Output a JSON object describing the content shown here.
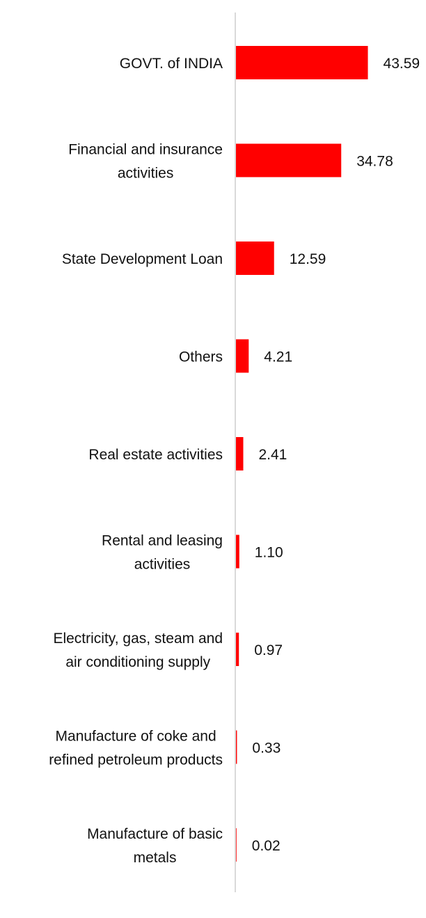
{
  "chart_data": {
    "type": "bar",
    "orientation": "horizontal",
    "categories": [
      [
        "GOVT. of INDIA"
      ],
      [
        "Financial and insurance",
        "activities"
      ],
      [
        "State Development Loan"
      ],
      [
        "Others"
      ],
      [
        "Real estate activities"
      ],
      [
        "Rental and leasing",
        "activities"
      ],
      [
        "Electricity, gas, steam and",
        "air conditioning supply"
      ],
      [
        "Manufacture of coke and",
        "refined petroleum products"
      ],
      [
        "Manufacture of basic",
        "metals"
      ]
    ],
    "values": [
      43.59,
      34.78,
      12.59,
      4.21,
      2.41,
      1.1,
      0.97,
      0.33,
      0.02
    ],
    "value_labels": [
      "43.59",
      "34.78",
      "12.59",
      "4.21",
      "2.41",
      "1.10",
      "0.97",
      "0.33",
      "0.02"
    ],
    "bar_color": "#ff0000",
    "axis_color": "#d9d9d9",
    "xlim": [
      0,
      46
    ],
    "grid": false,
    "legend": "none"
  }
}
